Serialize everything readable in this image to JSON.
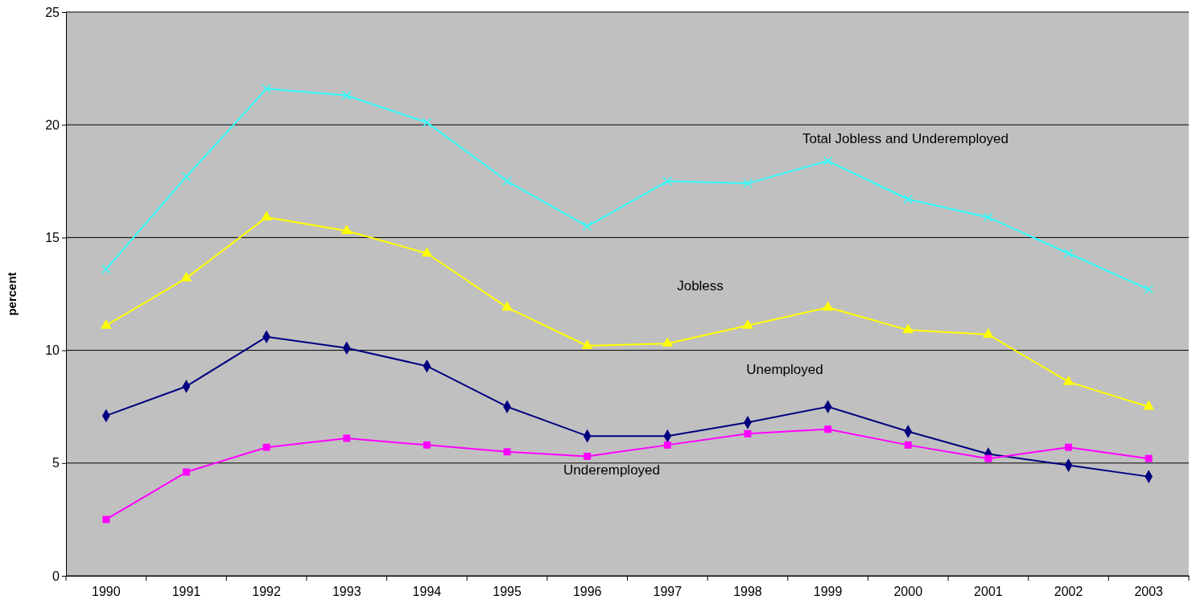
{
  "chart_data": {
    "type": "line",
    "ylabel": "percent",
    "categories": [
      "1990",
      "1991",
      "1992",
      "1993",
      "1994",
      "1995",
      "1996",
      "1997",
      "1998",
      "1999",
      "2000",
      "2001",
      "2002",
      "2003"
    ],
    "series": [
      {
        "name": "Total Jobless and Underemployed",
        "color": "#33ffff",
        "marker": "cross",
        "values": [
          13.6,
          17.7,
          21.6,
          21.3,
          20.1,
          17.5,
          15.5,
          17.5,
          17.4,
          18.4,
          16.7,
          15.9,
          14.3,
          12.7
        ]
      },
      {
        "name": "Jobless",
        "color": "#ffff00",
        "marker": "triangle",
        "values": [
          11.1,
          13.2,
          15.9,
          15.3,
          14.3,
          11.9,
          10.2,
          10.3,
          11.1,
          11.9,
          10.9,
          10.7,
          8.6,
          7.5
        ]
      },
      {
        "name": "Unemployed",
        "color": "#000080",
        "marker": "diamond",
        "values": [
          7.1,
          8.4,
          10.6,
          10.1,
          9.3,
          7.5,
          6.2,
          6.2,
          6.8,
          7.5,
          6.4,
          5.4,
          4.9,
          4.4
        ]
      },
      {
        "name": "Underemployed",
        "color": "#ff00ff",
        "marker": "square",
        "values": [
          2.5,
          4.6,
          5.7,
          6.1,
          5.8,
          5.5,
          5.3,
          5.8,
          6.3,
          6.5,
          5.8,
          5.2,
          5.7,
          5.2
        ]
      }
    ],
    "ylim": [
      0,
      25
    ],
    "yticks": [
      0,
      5,
      10,
      15,
      20,
      25
    ],
    "grid": "y",
    "legend": false
  }
}
